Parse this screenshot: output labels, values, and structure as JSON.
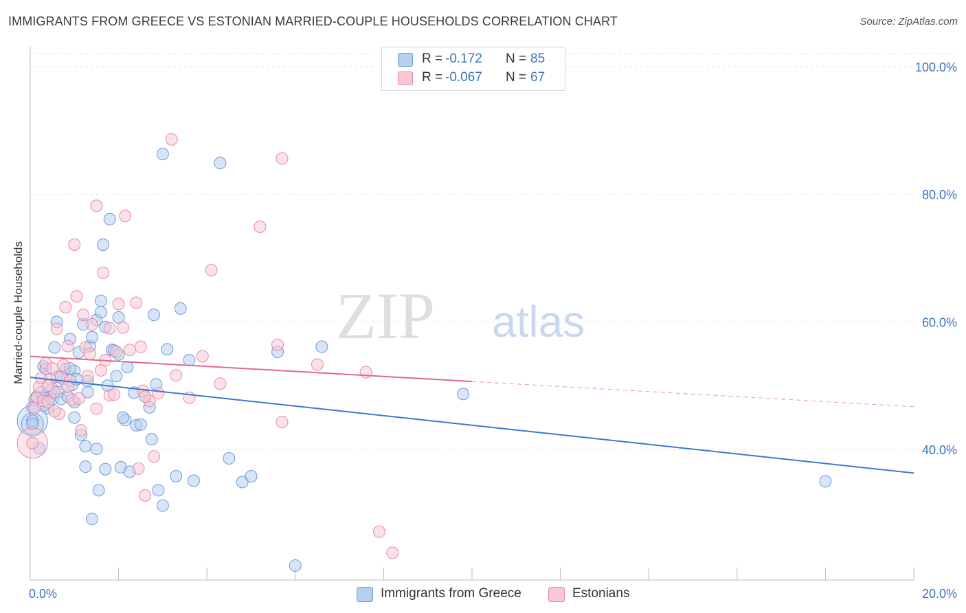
{
  "title": "IMMIGRANTS FROM GREECE VS ESTONIAN MARRIED-COUPLE HOUSEHOLDS CORRELATION CHART",
  "source": "Source: ZipAtlas.com",
  "watermark": {
    "zip": "ZIP",
    "atlas": "atlas"
  },
  "legend": {
    "r_label": "R =",
    "n_label": "N =",
    "rows": [
      {
        "r": "-0.172",
        "n": "85",
        "fill": "#b8d0f0",
        "stroke": "#6a9bd8",
        "value_color": "#3a73c4"
      },
      {
        "r": "-0.067",
        "n": "67",
        "fill": "#f8c8d6",
        "stroke": "#e68aa6",
        "value_color": "#3a73c4"
      }
    ]
  },
  "bottom_legend": [
    {
      "label": "Immigrants from Greece",
      "fill": "#b8d0f0",
      "stroke": "#6a9bd8"
    },
    {
      "label": "Estonians",
      "fill": "#f8c8d6",
      "stroke": "#e68aa6"
    }
  ],
  "chart_data": {
    "type": "scatter",
    "title": "IMMIGRANTS FROM GREECE VS ESTONIAN MARRIED-COUPLE HOUSEHOLDS CORRELATION CHART",
    "xlabel": "",
    "ylabel": "Married-couple Households",
    "xlim": [
      0,
      20
    ],
    "ylim": [
      20,
      100
    ],
    "x_tick_labels": [
      "0.0%",
      "20.0%"
    ],
    "y_tick_labels": [
      "40.0%",
      "60.0%",
      "80.0%",
      "100.0%"
    ],
    "y_ticks": [
      40,
      60,
      80,
      100
    ],
    "grid": true,
    "colors": {
      "greece": "#3b78d4",
      "estonians": "#e06890",
      "tick_label": "#3a73c4"
    },
    "series": [
      {
        "name": "Immigrants from Greece",
        "color": "#6a9bd8",
        "fill": "#b8d0f0",
        "trend": {
          "x": [
            0,
            20
          ],
          "y": [
            51.3,
            36.3
          ],
          "solid_to": 20
        },
        "points": [
          [
            0.05,
            44.5
          ],
          [
            0.05,
            44.0
          ],
          [
            0.1,
            47.8
          ],
          [
            0.15,
            48.3
          ],
          [
            0.2,
            40.2
          ],
          [
            0.25,
            49.0
          ],
          [
            0.3,
            48.1
          ],
          [
            0.3,
            53.0
          ],
          [
            0.35,
            52.6
          ],
          [
            0.4,
            46.5
          ],
          [
            0.45,
            48.2
          ],
          [
            0.5,
            47.9
          ],
          [
            0.55,
            56.0
          ],
          [
            0.6,
            60.0
          ],
          [
            0.65,
            49.0
          ],
          [
            0.7,
            47.9
          ],
          [
            0.75,
            51.0
          ],
          [
            0.8,
            52.6
          ],
          [
            0.85,
            48.3
          ],
          [
            0.9,
            57.3
          ],
          [
            0.95,
            50.1
          ],
          [
            1.0,
            52.3
          ],
          [
            1.0,
            47.4
          ],
          [
            1.05,
            51.0
          ],
          [
            1.1,
            55.2
          ],
          [
            1.15,
            42.3
          ],
          [
            1.2,
            59.6
          ],
          [
            1.25,
            37.3
          ],
          [
            1.25,
            40.5
          ],
          [
            1.3,
            49.0
          ],
          [
            1.3,
            50.7
          ],
          [
            1.35,
            56.2
          ],
          [
            1.4,
            57.6
          ],
          [
            1.4,
            29.1
          ],
          [
            1.5,
            60.3
          ],
          [
            1.55,
            33.6
          ],
          [
            1.6,
            61.5
          ],
          [
            1.6,
            63.3
          ],
          [
            1.7,
            59.2
          ],
          [
            1.7,
            36.9
          ],
          [
            1.75,
            50.0
          ],
          [
            1.8,
            76.1
          ],
          [
            1.85,
            55.6
          ],
          [
            1.9,
            55.5
          ],
          [
            1.95,
            51.5
          ],
          [
            2.0,
            60.7
          ],
          [
            2.0,
            54.9
          ],
          [
            2.05,
            37.2
          ],
          [
            2.15,
            44.6
          ],
          [
            2.2,
            52.9
          ],
          [
            2.25,
            36.5
          ],
          [
            2.35,
            48.9
          ],
          [
            2.4,
            43.8
          ],
          [
            2.5,
            43.9
          ],
          [
            2.6,
            48.3
          ],
          [
            2.7,
            46.6
          ],
          [
            2.75,
            41.6
          ],
          [
            2.8,
            61.1
          ],
          [
            2.85,
            50.2
          ],
          [
            2.9,
            33.6
          ],
          [
            3.0,
            31.2
          ],
          [
            3.0,
            86.3
          ],
          [
            3.1,
            55.7
          ],
          [
            3.3,
            35.8
          ],
          [
            3.4,
            62.1
          ],
          [
            3.6,
            54.0
          ],
          [
            3.7,
            35.1
          ],
          [
            4.3,
            84.9
          ],
          [
            4.5,
            38.6
          ],
          [
            4.8,
            34.9
          ],
          [
            5.0,
            35.8
          ],
          [
            5.6,
            55.3
          ],
          [
            6.0,
            21.8
          ],
          [
            6.6,
            56.1
          ],
          [
            9.8,
            48.7
          ],
          [
            18.0,
            35.0
          ],
          [
            0.05,
            46.6
          ],
          [
            0.3,
            46.9
          ],
          [
            0.6,
            51.4
          ],
          [
            0.9,
            52.7
          ],
          [
            1.5,
            40.1
          ],
          [
            2.1,
            45.0
          ],
          [
            1.0,
            45.0
          ],
          [
            0.5,
            49.5
          ],
          [
            1.65,
            72.1
          ]
        ],
        "big": [
          [
            0.05,
            44.5,
            22
          ],
          [
            0.05,
            44.0,
            16
          ]
        ]
      },
      {
        "name": "Estonians",
        "color": "#e68aa6",
        "fill": "#f8c8d6",
        "trend": {
          "x": [
            0,
            20
          ],
          "y": [
            54.6,
            46.7
          ],
          "solid_to": 10.0
        },
        "points": [
          [
            0.05,
            41.0
          ],
          [
            0.1,
            46.5
          ],
          [
            0.15,
            48.1
          ],
          [
            0.2,
            49.8
          ],
          [
            0.25,
            51.2
          ],
          [
            0.3,
            47.6
          ],
          [
            0.35,
            53.5
          ],
          [
            0.4,
            47.4
          ],
          [
            0.45,
            51.0
          ],
          [
            0.5,
            52.7
          ],
          [
            0.55,
            49.0
          ],
          [
            0.6,
            58.9
          ],
          [
            0.65,
            45.6
          ],
          [
            0.7,
            51.3
          ],
          [
            0.75,
            53.2
          ],
          [
            0.8,
            62.3
          ],
          [
            0.85,
            56.2
          ],
          [
            0.9,
            50.8
          ],
          [
            0.95,
            47.8
          ],
          [
            1.0,
            72.1
          ],
          [
            1.05,
            64.0
          ],
          [
            1.1,
            48.0
          ],
          [
            1.15,
            43.0
          ],
          [
            1.2,
            61.1
          ],
          [
            1.25,
            56.0
          ],
          [
            1.3,
            51.5
          ],
          [
            1.35,
            55.0
          ],
          [
            1.4,
            59.6
          ],
          [
            1.5,
            78.2
          ],
          [
            1.5,
            46.4
          ],
          [
            1.6,
            52.4
          ],
          [
            1.65,
            67.7
          ],
          [
            1.7,
            54.0
          ],
          [
            1.8,
            48.5
          ],
          [
            1.9,
            48.6
          ],
          [
            1.95,
            55.3
          ],
          [
            2.0,
            62.8
          ],
          [
            2.1,
            59.1
          ],
          [
            2.15,
            76.6
          ],
          [
            2.25,
            55.6
          ],
          [
            2.4,
            63.0
          ],
          [
            2.45,
            37.0
          ],
          [
            2.5,
            56.1
          ],
          [
            2.55,
            49.2
          ],
          [
            2.6,
            32.8
          ],
          [
            2.7,
            47.6
          ],
          [
            2.8,
            38.9
          ],
          [
            2.9,
            48.8
          ],
          [
            3.2,
            88.6
          ],
          [
            3.3,
            51.6
          ],
          [
            3.6,
            48.1
          ],
          [
            3.9,
            54.6
          ],
          [
            4.1,
            68.1
          ],
          [
            4.3,
            50.3
          ],
          [
            5.2,
            74.9
          ],
          [
            5.6,
            56.4
          ],
          [
            5.7,
            44.3
          ],
          [
            5.7,
            85.6
          ],
          [
            6.5,
            53.3
          ],
          [
            7.6,
            52.1
          ],
          [
            7.9,
            27.1
          ],
          [
            8.2,
            23.8
          ],
          [
            0.55,
            46.0
          ],
          [
            0.4,
            50.0
          ],
          [
            1.8,
            59.0
          ],
          [
            0.85,
            49.8
          ],
          [
            2.6,
            48.3
          ]
        ],
        "big": [
          [
            0.05,
            41.0,
            22
          ]
        ]
      }
    ]
  }
}
